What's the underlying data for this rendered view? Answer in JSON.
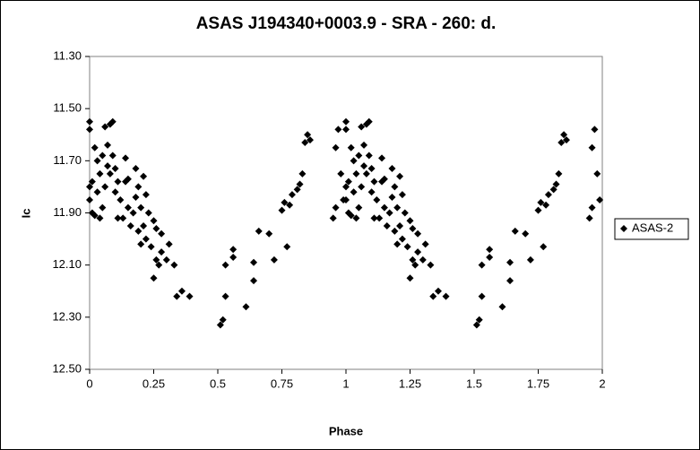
{
  "chart_data": {
    "type": "scatter",
    "title": "ASAS J194340+0003.9  - SRA - 260: d.",
    "xlabel": "Phase",
    "ylabel": "Ic",
    "xlim": [
      0,
      2
    ],
    "xticks": [
      0,
      0.25,
      0.5,
      0.75,
      1,
      1.25,
      1.5,
      1.75,
      2
    ],
    "ylim": [
      11.3,
      12.5
    ],
    "y_inverted": true,
    "yticks": [
      {
        "value": 11.3,
        "label": "11.30"
      },
      {
        "value": 11.5,
        "label": "11.50"
      },
      {
        "value": 11.7,
        "label": "11.70"
      },
      {
        "value": 11.9,
        "label": "11.90"
      },
      {
        "value": 12.1,
        "label": "12.10"
      },
      {
        "value": 12.3,
        "label": "12.30"
      },
      {
        "value": 12.5,
        "label": "12.50"
      }
    ],
    "legend": "right",
    "series": [
      {
        "name": "ASAS-2",
        "color": "#000000",
        "marker": "diamond",
        "x": [
          0,
          0,
          0,
          0,
          0.01,
          0.01,
          0.02,
          0.02,
          0.03,
          0.03,
          0.04,
          0.04,
          0.05,
          0.05,
          0.06,
          0.06,
          0.07,
          0.07,
          0.08,
          0.08,
          0.09,
          0.09,
          0.1,
          0.1,
          0.11,
          0.11,
          0.12,
          0.13,
          0.14,
          0.14,
          0.15,
          0.15,
          0.16,
          0.17,
          0.18,
          0.18,
          0.19,
          0.19,
          0.2,
          0.2,
          0.21,
          0.21,
          0.22,
          0.22,
          0.23,
          0.24,
          0.25,
          0.25,
          0.26,
          0.26,
          0.27,
          0.28,
          0.28,
          0.3,
          0.31,
          0.33,
          0.34,
          0.36,
          0.39,
          0.51,
          0.52,
          0.53,
          0.53,
          0.56,
          0.56,
          0.61,
          0.64,
          0.64,
          0.66,
          0.7,
          0.72,
          0.75,
          0.76,
          0.77,
          0.78,
          0.79,
          0.81,
          0.82,
          0.83,
          0.84,
          0.85,
          0.86,
          0.95,
          0.96,
          0.96,
          0.97,
          0.98,
          0.99,
          1,
          1,
          1,
          1,
          1.01,
          1.01,
          1.02,
          1.02,
          1.03,
          1.03,
          1.04,
          1.04,
          1.05,
          1.05,
          1.06,
          1.06,
          1.07,
          1.07,
          1.08,
          1.08,
          1.09,
          1.09,
          1.1,
          1.1,
          1.11,
          1.11,
          1.12,
          1.13,
          1.14,
          1.14,
          1.15,
          1.15,
          1.16,
          1.17,
          1.18,
          1.18,
          1.19,
          1.19,
          1.2,
          1.2,
          1.21,
          1.21,
          1.22,
          1.22,
          1.23,
          1.24,
          1.25,
          1.25,
          1.26,
          1.26,
          1.27,
          1.28,
          1.28,
          1.3,
          1.31,
          1.33,
          1.34,
          1.36,
          1.39,
          1.51,
          1.52,
          1.53,
          1.53,
          1.56,
          1.56,
          1.61,
          1.64,
          1.64,
          1.66,
          1.7,
          1.72,
          1.75,
          1.76,
          1.77,
          1.78,
          1.79,
          1.81,
          1.82,
          1.83,
          1.84,
          1.85,
          1.86,
          1.95,
          1.96,
          1.96,
          1.97,
          1.98,
          1.99
        ],
        "values": [
          11.55,
          11.58,
          11.8,
          11.85,
          11.9,
          11.78,
          11.91,
          11.65,
          11.7,
          11.82,
          11.75,
          11.92,
          11.68,
          11.88,
          11.57,
          11.8,
          11.72,
          11.64,
          11.56,
          11.75,
          11.55,
          11.68,
          11.82,
          11.73,
          11.92,
          11.78,
          11.85,
          11.92,
          11.78,
          11.69,
          11.77,
          11.88,
          11.95,
          11.9,
          11.84,
          11.73,
          11.97,
          11.8,
          12.02,
          11.88,
          11.95,
          11.76,
          12,
          11.83,
          11.9,
          12.03,
          11.93,
          12.15,
          12.08,
          11.96,
          12.1,
          12.05,
          11.98,
          12.08,
          12.02,
          12.1,
          12.22,
          12.2,
          12.22,
          12.33,
          12.31,
          12.1,
          12.22,
          12.04,
          12.07,
          12.26,
          12.16,
          12.09,
          11.97,
          11.98,
          12.08,
          11.89,
          11.86,
          12.03,
          11.87,
          11.83,
          11.81,
          11.79,
          11.75,
          11.63,
          11.6,
          11.62,
          11.92,
          11.88,
          11.65,
          11.58,
          11.75,
          11.85,
          11.55,
          11.58,
          11.8,
          11.85,
          11.9,
          11.78,
          11.91,
          11.65,
          11.7,
          11.82,
          11.75,
          11.92,
          11.68,
          11.88,
          11.57,
          11.8,
          11.72,
          11.64,
          11.56,
          11.75,
          11.55,
          11.68,
          11.82,
          11.73,
          11.92,
          11.78,
          11.85,
          11.92,
          11.78,
          11.69,
          11.77,
          11.88,
          11.95,
          11.9,
          11.84,
          11.73,
          11.97,
          11.8,
          12.02,
          11.88,
          11.95,
          11.76,
          12,
          11.83,
          11.9,
          12.03,
          11.93,
          12.15,
          12.08,
          11.96,
          12.1,
          12.05,
          11.98,
          12.08,
          12.02,
          12.1,
          12.22,
          12.2,
          12.22,
          12.33,
          12.31,
          12.1,
          12.22,
          12.04,
          12.07,
          12.26,
          12.16,
          12.09,
          11.97,
          11.98,
          12.08,
          11.89,
          11.86,
          12.03,
          11.87,
          11.83,
          11.81,
          11.79,
          11.75,
          11.63,
          11.6,
          11.62,
          11.92,
          11.88,
          11.65,
          11.58,
          11.75,
          11.85
        ]
      }
    ]
  }
}
